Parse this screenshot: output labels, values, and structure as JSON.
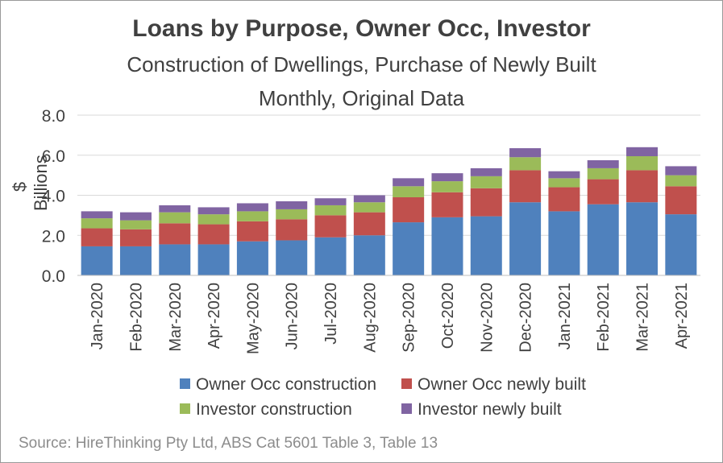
{
  "chart_data": {
    "type": "bar",
    "stacked": true,
    "title": "Loans by Purpose, Owner Occ, Investor",
    "subtitle_lines": [
      "Construction of Dwellings, Purchase of Newly Built",
      "Monthly, Original Data"
    ],
    "ylabel": "$ Billions",
    "ylim": [
      0,
      8
    ],
    "yticks": [
      "0.0",
      "2.0",
      "4.0",
      "6.0",
      "8.0"
    ],
    "grid": true,
    "legend_position": "bottom",
    "categories": [
      "Jan-2020",
      "Feb-2020",
      "Mar-2020",
      "Apr-2020",
      "May-2020",
      "Jun-2020",
      "Jul-2020",
      "Aug-2020",
      "Sep-2020",
      "Oct-2020",
      "Nov-2020",
      "Dec-2020",
      "Jan-2021",
      "Feb-2021",
      "Mar-2021",
      "Apr-2021"
    ],
    "series": [
      {
        "name": "Owner Occ construction",
        "color": "#4f81bd",
        "values": [
          1.45,
          1.45,
          1.55,
          1.55,
          1.7,
          1.75,
          1.9,
          2.0,
          2.65,
          2.9,
          2.95,
          3.65,
          3.2,
          3.55,
          3.65,
          3.05
        ]
      },
      {
        "name": "Owner Occ newly built",
        "color": "#c0504d",
        "values": [
          0.9,
          0.85,
          1.05,
          1.0,
          1.0,
          1.05,
          1.1,
          1.15,
          1.25,
          1.25,
          1.4,
          1.6,
          1.2,
          1.25,
          1.6,
          1.4
        ]
      },
      {
        "name": "Investor construction",
        "color": "#9bbb59",
        "values": [
          0.5,
          0.45,
          0.55,
          0.5,
          0.5,
          0.5,
          0.5,
          0.5,
          0.55,
          0.55,
          0.6,
          0.65,
          0.45,
          0.55,
          0.7,
          0.55
        ]
      },
      {
        "name": "Investor newly built",
        "color": "#8064a2",
        "values": [
          0.35,
          0.4,
          0.35,
          0.35,
          0.4,
          0.4,
          0.35,
          0.35,
          0.4,
          0.4,
          0.4,
          0.45,
          0.35,
          0.4,
          0.45,
          0.45
        ]
      }
    ],
    "source": "Source: HireThinking Pty Ltd, ABS Cat 5601 Table 3, Table 13"
  }
}
